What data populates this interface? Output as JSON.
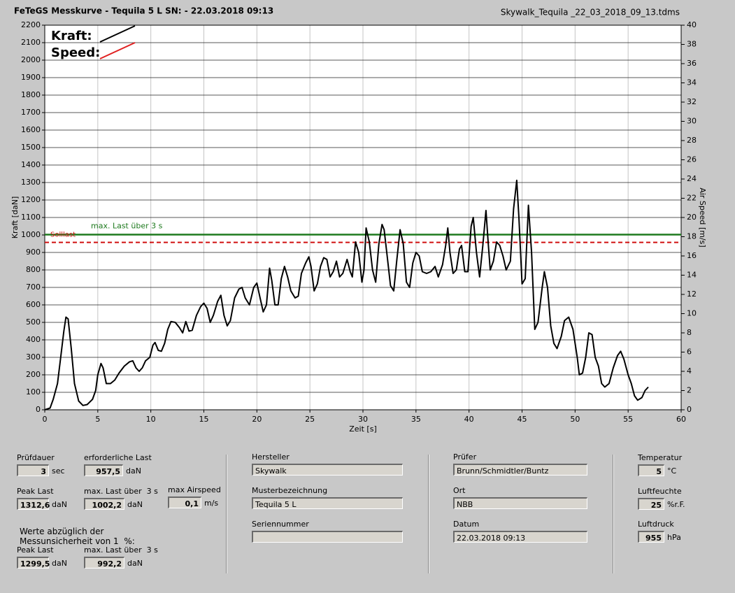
{
  "header": {
    "title": "FeTeGS Messkurve - Tequila 5 L  SN:  - 22.03.2018 09:13",
    "file": "Skywalk_Tequila _22_03_2018_09_13.tdms"
  },
  "chart_data": {
    "type": "line",
    "x_label": "Zeit [s]",
    "y_label": "Kraft [daN]",
    "y2_label": "Air Speed [m/s]",
    "xlim": [
      0,
      60
    ],
    "xticks": [
      0,
      5,
      10,
      15,
      20,
      25,
      30,
      35,
      40,
      45,
      50,
      55,
      60
    ],
    "ylim": [
      0,
      2200
    ],
    "yticks": [
      0,
      100,
      200,
      300,
      400,
      500,
      600,
      700,
      800,
      900,
      1000,
      1100,
      1200,
      1300,
      1400,
      1500,
      1600,
      1700,
      1800,
      1900,
      2000,
      2100,
      2200
    ],
    "y2lim": [
      0,
      40
    ],
    "y2ticks": [
      0,
      2,
      4,
      6,
      8,
      10,
      12,
      14,
      16,
      18,
      20,
      22,
      24,
      26,
      28,
      30,
      32,
      34,
      36,
      38,
      40
    ],
    "grid": true,
    "legend": [
      {
        "name": "Kraft:",
        "color": "#000000"
      },
      {
        "name": "Speed:",
        "color": "#e02020"
      }
    ],
    "reference_lines": [
      {
        "label": "max. Last über  3 s",
        "value": 1002.2,
        "color": "#1e7a1e"
      },
      {
        "label": "Solllast",
        "value": 957.5,
        "color": "#d01010",
        "dashed": true
      }
    ],
    "x": [
      0,
      0.5,
      0.8,
      1.2,
      1.5,
      1.8,
      2.0,
      2.2,
      2.5,
      2.8,
      3.2,
      3.6,
      4.0,
      4.5,
      4.8,
      5.0,
      5.3,
      5.5,
      5.8,
      6.2,
      6.6,
      7.0,
      7.5,
      8.0,
      8.3,
      8.6,
      8.9,
      9.2,
      9.5,
      9.9,
      10.2,
      10.4,
      10.7,
      11.0,
      11.3,
      11.6,
      11.9,
      12.3,
      12.7,
      13.0,
      13.3,
      13.6,
      13.9,
      14.3,
      14.7,
      15.0,
      15.3,
      15.6,
      15.9,
      16.3,
      16.6,
      16.9,
      17.2,
      17.5,
      17.9,
      18.3,
      18.6,
      18.9,
      19.3,
      19.7,
      20.0,
      20.3,
      20.6,
      20.9,
      21.2,
      21.4,
      21.7,
      22.0,
      22.3,
      22.6,
      22.9,
      23.2,
      23.6,
      23.9,
      24.2,
      24.6,
      24.9,
      25.1,
      25.4,
      25.7,
      26.0,
      26.3,
      26.6,
      26.9,
      27.2,
      27.5,
      27.8,
      28.1,
      28.5,
      28.8,
      29.0,
      29.3,
      29.6,
      29.9,
      30.1,
      30.3,
      30.6,
      30.9,
      31.2,
      31.5,
      31.8,
      32.0,
      32.3,
      32.6,
      32.9,
      33.2,
      33.5,
      33.8,
      34.1,
      34.4,
      34.7,
      35.0,
      35.3,
      35.6,
      36.0,
      36.4,
      36.8,
      37.1,
      37.5,
      37.8,
      38.0,
      38.2,
      38.5,
      38.8,
      39.1,
      39.3,
      39.6,
      39.9,
      40.2,
      40.4,
      40.7,
      41.0,
      41.3,
      41.6,
      41.8,
      42.0,
      42.3,
      42.6,
      42.9,
      43.2,
      43.5,
      43.9,
      44.2,
      44.5,
      44.7,
      45.0,
      45.3,
      45.6,
      45.9,
      46.2,
      46.5,
      46.9,
      47.1,
      47.4,
      47.7,
      48.0,
      48.3,
      48.7,
      49.0,
      49.4,
      49.8,
      50.2,
      50.4,
      50.7,
      51.0,
      51.3,
      51.6,
      51.9,
      52.2,
      52.5,
      52.8,
      53.2,
      53.6,
      54.0,
      54.3,
      54.6,
      55.0,
      55.3,
      55.6,
      55.9,
      56.3,
      56.6,
      56.9
    ],
    "series": [
      {
        "name": "Kraft",
        "color": "#000000",
        "values": [
          0,
          10,
          60,
          150,
          300,
          450,
          530,
          520,
          350,
          150,
          50,
          25,
          30,
          60,
          110,
          200,
          265,
          240,
          150,
          150,
          170,
          210,
          250,
          275,
          280,
          240,
          220,
          240,
          280,
          300,
          370,
          385,
          340,
          335,
          380,
          460,
          505,
          500,
          470,
          440,
          505,
          450,
          455,
          540,
          590,
          610,
          580,
          500,
          540,
          620,
          655,
          540,
          480,
          510,
          640,
          690,
          700,
          640,
          600,
          700,
          725,
          640,
          560,
          600,
          810,
          740,
          600,
          600,
          750,
          820,
          760,
          680,
          640,
          650,
          780,
          840,
          875,
          820,
          680,
          720,
          820,
          870,
          860,
          760,
          790,
          850,
          760,
          780,
          860,
          790,
          760,
          960,
          900,
          730,
          800,
          1040,
          960,
          800,
          730,
          950,
          1060,
          1030,
          870,
          710,
          680,
          860,
          1030,
          950,
          730,
          700,
          840,
          900,
          880,
          790,
          780,
          790,
          820,
          760,
          830,
          940,
          1040,
          900,
          780,
          800,
          920,
          940,
          790,
          790,
          1050,
          1100,
          900,
          760,
          940,
          1140,
          960,
          800,
          850,
          960,
          940,
          880,
          800,
          850,
          1150,
          1312.6,
          1100,
          720,
          750,
          1170,
          900,
          460,
          500,
          700,
          790,
          700,
          480,
          380,
          350,
          420,
          510,
          530,
          460,
          300,
          200,
          210,
          300,
          440,
          430,
          300,
          250,
          150,
          130,
          150,
          240,
          310,
          335,
          290,
          200,
          150,
          80,
          55,
          70,
          110,
          130
        ]
      }
    ]
  },
  "form": {
    "pruefdauer": {
      "label": "Prüfdauer",
      "value": "3",
      "unit": "sec"
    },
    "erforderliche_last": {
      "label": "erforderliche Last",
      "value": "957,5",
      "unit": "daN"
    },
    "peak_last": {
      "label": "Peak Last",
      "value": "1312,6",
      "unit": "daN"
    },
    "max_last": {
      "label": "max. Last über  3 s",
      "value": "1002,2",
      "unit": "daN"
    },
    "max_airspeed": {
      "label": "max Airspeed",
      "value": "0,1",
      "unit": "m/s"
    },
    "note": [
      "Werte abzüglich der",
      "Messunsicherheit von 1  %:"
    ],
    "peak_last_corr": {
      "label": "Peak Last",
      "value": "1299,5",
      "unit": "daN"
    },
    "max_last_corr": {
      "label": "max. Last über  3 s",
      "value": "992,2",
      "unit": "daN"
    },
    "hersteller": {
      "label": "Hersteller",
      "value": "Skywalk"
    },
    "musterbezeichnung": {
      "label": "Musterbezeichnung",
      "value": "Tequila 5 L"
    },
    "seriennummer": {
      "label": "Seriennummer"
    },
    "pruefer": {
      "label": "Prüfer",
      "value": "Brunn/Schmidtler/Buntz"
    },
    "ort": {
      "label": "Ort",
      "value": "NBB"
    },
    "datum": {
      "label": "Datum",
      "value": "22.03.2018 09:13"
    },
    "temperatur": {
      "label": "Temperatur",
      "value": "5",
      "unit": "°C"
    },
    "luftfeuchte": {
      "label": "Luftfeuchte",
      "value": "25",
      "unit": "%r.F."
    },
    "luftdruck": {
      "label": "Luftdruck",
      "value": "955",
      "unit": "hPa"
    }
  }
}
